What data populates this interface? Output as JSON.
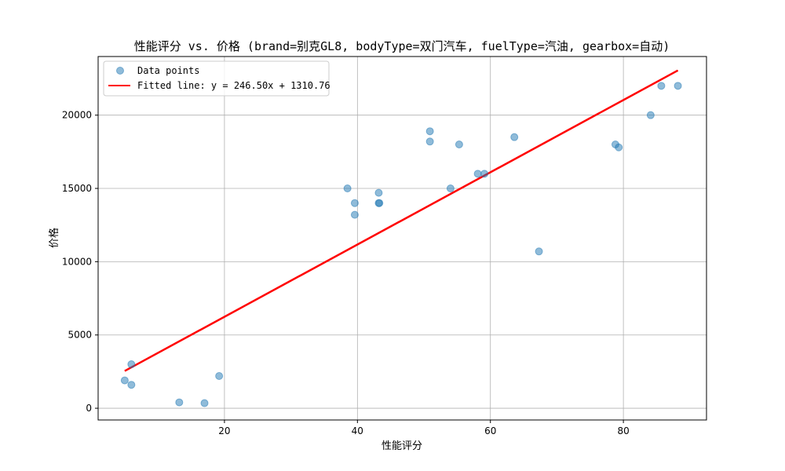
{
  "chart_data": {
    "type": "scatter",
    "title": "性能评分 vs. 价格 (brand=别克GL8, bodyType=双门汽车, fuelType=汽油, gearbox=自动)",
    "xlabel": "性能评分",
    "ylabel": "价格",
    "xlim": [
      1,
      92.5
    ],
    "ylim": [
      -800,
      24000
    ],
    "x_ticks": [
      20,
      40,
      60,
      80
    ],
    "y_ticks": [
      0,
      5000,
      10000,
      15000,
      20000
    ],
    "grid": true,
    "legend_position": "top-left",
    "series": [
      {
        "name": "Data points",
        "kind": "scatter",
        "color": "#1f77b4",
        "points": [
          {
            "x": 5,
            "y": 1900
          },
          {
            "x": 6,
            "y": 3000
          },
          {
            "x": 6,
            "y": 1600
          },
          {
            "x": 13.2,
            "y": 400
          },
          {
            "x": 17,
            "y": 350
          },
          {
            "x": 19.2,
            "y": 2200
          },
          {
            "x": 38.5,
            "y": 15000
          },
          {
            "x": 39.6,
            "y": 14000
          },
          {
            "x": 39.6,
            "y": 13200
          },
          {
            "x": 43.2,
            "y": 14700
          },
          {
            "x": 43.2,
            "y": 14000
          },
          {
            "x": 43.3,
            "y": 14000
          },
          {
            "x": 50.9,
            "y": 18900
          },
          {
            "x": 50.9,
            "y": 18200
          },
          {
            "x": 54,
            "y": 15000
          },
          {
            "x": 55.3,
            "y": 18000
          },
          {
            "x": 58.1,
            "y": 16000
          },
          {
            "x": 59.1,
            "y": 16000
          },
          {
            "x": 63.6,
            "y": 18500
          },
          {
            "x": 67.3,
            "y": 10700
          },
          {
            "x": 78.8,
            "y": 18000
          },
          {
            "x": 79.3,
            "y": 17800
          },
          {
            "x": 84.1,
            "y": 20000
          },
          {
            "x": 85.7,
            "y": 22000
          },
          {
            "x": 88.2,
            "y": 22000
          }
        ]
      },
      {
        "name": "Fitted line: y = 246.50x + 1310.76",
        "kind": "line",
        "color": "#ff0000",
        "slope": 246.5,
        "intercept": 1310.76,
        "x_range": [
          5,
          88.2
        ]
      }
    ]
  }
}
